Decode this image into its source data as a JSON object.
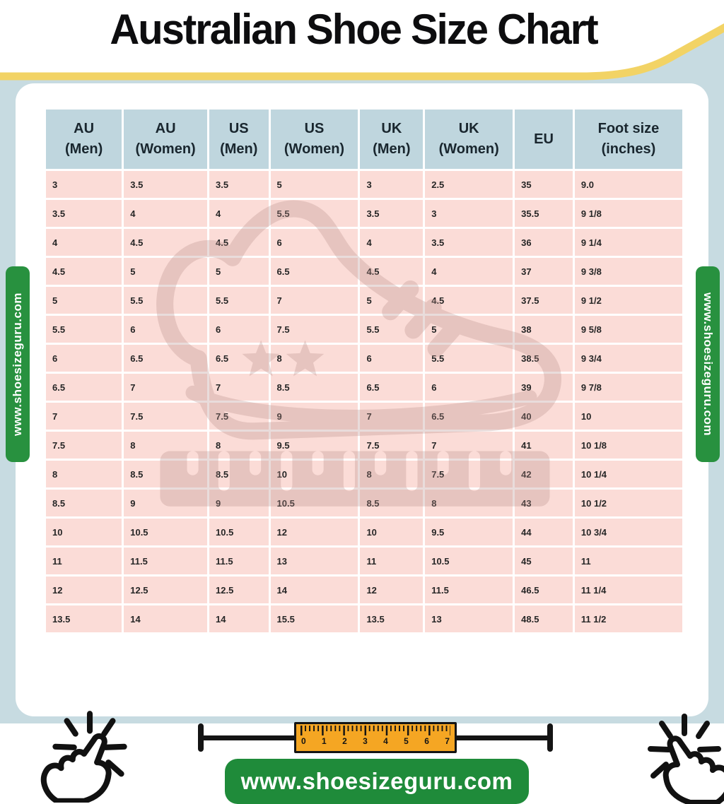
{
  "title": "Australian Shoe Size Chart",
  "chart_data": {
    "type": "table",
    "title": "Australian Shoe Size Chart",
    "columns": [
      {
        "line1": "AU",
        "line2": "(Men)"
      },
      {
        "line1": "AU",
        "line2": "(Women)"
      },
      {
        "line1": "US",
        "line2": "(Men)"
      },
      {
        "line1": "US",
        "line2": "(Women)"
      },
      {
        "line1": "UK",
        "line2": "(Men)"
      },
      {
        "line1": "UK",
        "line2": "(Women)"
      },
      {
        "line1": "EU",
        "line2": ""
      },
      {
        "line1": "Foot size",
        "line2": "(inches)"
      }
    ],
    "rows": [
      [
        "3",
        "3.5",
        "3.5",
        "5",
        "3",
        "2.5",
        "35",
        "9.0"
      ],
      [
        "3.5",
        "4",
        "4",
        "5.5",
        "3.5",
        "3",
        "35.5",
        "9 1/8"
      ],
      [
        "4",
        "4.5",
        "4.5",
        "6",
        "4",
        "3.5",
        "36",
        "9 1/4"
      ],
      [
        "4.5",
        "5",
        "5",
        "6.5",
        "4.5",
        "4",
        "37",
        "9 3/8"
      ],
      [
        "5",
        "5.5",
        "5.5",
        "7",
        "5",
        "4.5",
        "37.5",
        "9 1/2"
      ],
      [
        "5.5",
        "6",
        "6",
        "7.5",
        "5.5",
        "5",
        "38",
        "9 5/8"
      ],
      [
        "6",
        "6.5",
        "6.5",
        "8",
        "6",
        "5.5",
        "38.5",
        "9 3/4"
      ],
      [
        "6.5",
        "7",
        "7",
        "8.5",
        "6.5",
        "6",
        "39",
        "9 7/8"
      ],
      [
        "7",
        "7.5",
        "7.5",
        "9",
        "7",
        "6.5",
        "40",
        "10"
      ],
      [
        "7.5",
        "8",
        "8",
        "9.5",
        "7.5",
        "7",
        "41",
        "10 1/8"
      ],
      [
        "8",
        "8.5",
        "8.5",
        "10",
        "8",
        "7.5",
        "42",
        "10 1/4"
      ],
      [
        "8.5",
        "9",
        "9",
        "10.5",
        "8.5",
        "8",
        "43",
        "10 1/2"
      ],
      [
        "10",
        "10.5",
        "10.5",
        "12",
        "10",
        "9.5",
        "44",
        "10 3/4"
      ],
      [
        "11",
        "11.5",
        "11.5",
        "13",
        "11",
        "10.5",
        "45",
        "11"
      ],
      [
        "12",
        "12.5",
        "12.5",
        "14",
        "12",
        "11.5",
        "46.5",
        "11 1/4"
      ],
      [
        "13.5",
        "14",
        "14",
        "15.5",
        "13.5",
        "13",
        "48.5",
        "11 1/2"
      ]
    ]
  },
  "side_banner_left": {
    "text": "www.shoesizeguru.com"
  },
  "side_banner_right": {
    "text": "www.shoesizeguru.com"
  },
  "footer": {
    "text": "www.shoesizeguru.com"
  },
  "ruler": {
    "numbers": [
      "0",
      "1",
      "2",
      "3",
      "4",
      "5",
      "6",
      "7"
    ]
  },
  "icons": {
    "left": "click-hand-icon",
    "right": "click-hand-icon",
    "watermark": "sneaker-watermark-icon",
    "measure": "ruler-icon"
  },
  "colors": {
    "page_bg": "#c7dbe1",
    "card_bg": "#ffffff",
    "header_cell": "#bfd6de",
    "row_cell": "#fbdcd7",
    "accent_green": "#28913f",
    "footer_green": "#1f8b3a",
    "wave_yellow": "#f2d365",
    "ruler_orange": "#f5a623",
    "text_dark": "#1d1d1f",
    "watermark_rose": "#b98f89"
  }
}
